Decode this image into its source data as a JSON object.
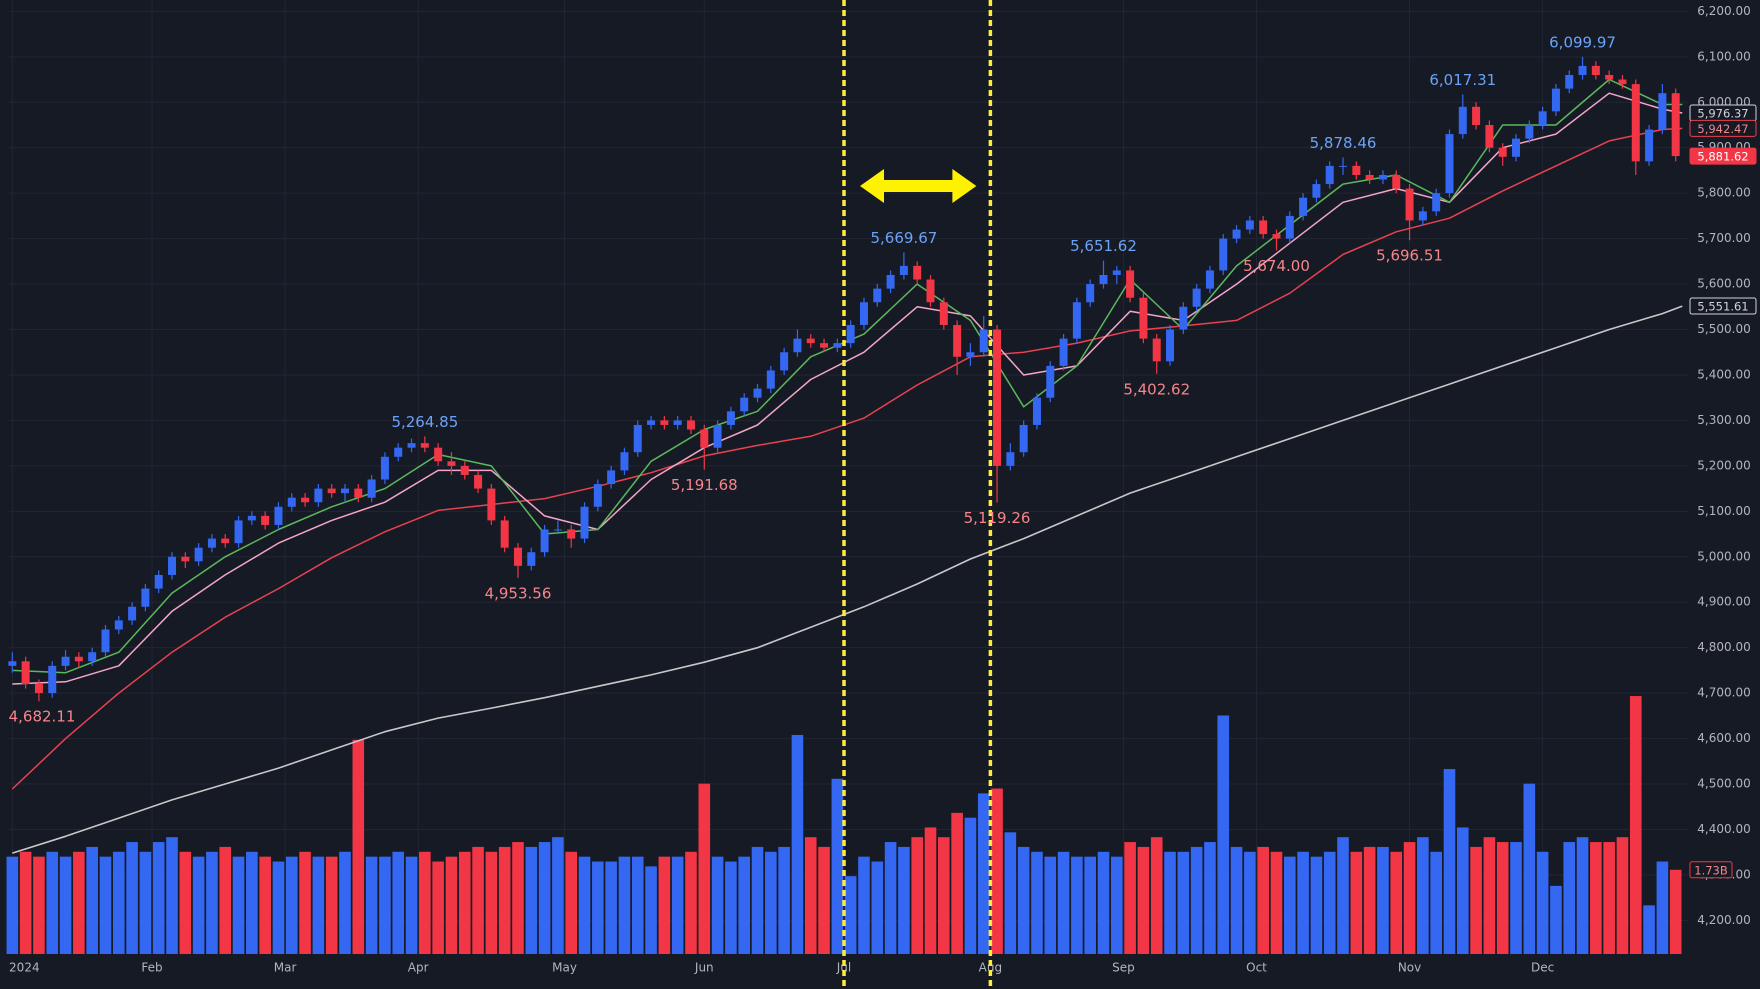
{
  "chart_data": {
    "type": "candlestick",
    "xlim": [
      -0.5,
      252
    ],
    "ylim": [
      4126,
      6225
    ],
    "y2lim": [
      0,
      19.6
    ],
    "grid": true,
    "up_color": "#3468f2",
    "down_color": "#f23645",
    "xticks": [
      {
        "value": 0,
        "label": "2024"
      },
      {
        "value": 21,
        "label": "Feb"
      },
      {
        "value": 41,
        "label": "Mar"
      },
      {
        "value": 61,
        "label": "Apr"
      },
      {
        "value": 83,
        "label": "May"
      },
      {
        "value": 104,
        "label": "Jun"
      },
      {
        "value": 125,
        "label": "Jul"
      },
      {
        "value": 147,
        "label": "Aug"
      },
      {
        "value": 167,
        "label": "Sep"
      },
      {
        "value": 187,
        "label": "Oct"
      },
      {
        "value": 210,
        "label": "Nov"
      },
      {
        "value": 230,
        "label": "Dec"
      }
    ],
    "yticks": [
      {
        "value": 4200,
        "label": "4,200.00"
      },
      {
        "value": 4300,
        "label": "4,300.00"
      },
      {
        "value": 4400,
        "label": "4,400.00"
      },
      {
        "value": 4500,
        "label": "4,500.00"
      },
      {
        "value": 4600,
        "label": "4,600.00"
      },
      {
        "value": 4700,
        "label": "4,700.00"
      },
      {
        "value": 4800,
        "label": "4,800.00"
      },
      {
        "value": 4900,
        "label": "4,900.00"
      },
      {
        "value": 5000,
        "label": "5,000.00"
      },
      {
        "value": 5100,
        "label": "5,100.00"
      },
      {
        "value": 5200,
        "label": "5,200.00"
      },
      {
        "value": 5300,
        "label": "5,300.00"
      },
      {
        "value": 5400,
        "label": "5,400.00"
      },
      {
        "value": 5500,
        "label": "5,500.00"
      },
      {
        "value": 5600,
        "label": "5,600.00"
      },
      {
        "value": 5700,
        "label": "5,700.00"
      },
      {
        "value": 5800,
        "label": "5,800.00"
      },
      {
        "value": 5900,
        "label": "5,900.00"
      },
      {
        "value": 6000,
        "label": "6,000.00"
      },
      {
        "value": 6100,
        "label": "6,100.00"
      },
      {
        "value": 6200,
        "label": "6,200.00"
      }
    ],
    "x": [
      0,
      2,
      4,
      6,
      8,
      10,
      12,
      14,
      16,
      18,
      20,
      22,
      24,
      26,
      28,
      30,
      32,
      34,
      36,
      38,
      40,
      42,
      44,
      46,
      48,
      50,
      52,
      54,
      56,
      58,
      60,
      62,
      64,
      66,
      68,
      70,
      72,
      74,
      76,
      78,
      80,
      82,
      84,
      86,
      88,
      90,
      92,
      94,
      96,
      98,
      100,
      102,
      104,
      106,
      108,
      110,
      112,
      114,
      116,
      118,
      120,
      122,
      124,
      126,
      128,
      130,
      132,
      134,
      136,
      138,
      140,
      142,
      144,
      146,
      148,
      150,
      152,
      154,
      156,
      158,
      160,
      162,
      164,
      166,
      168,
      170,
      172,
      174,
      176,
      178,
      180,
      182,
      184,
      186,
      188,
      190,
      192,
      194,
      196,
      198,
      200,
      202,
      204,
      206,
      208,
      210,
      212,
      214,
      216,
      218,
      220,
      222,
      224,
      226,
      228,
      230,
      232,
      234,
      236,
      238,
      240,
      242,
      244,
      246,
      248,
      250
    ],
    "ohlc": [
      [
        4760,
        4790,
        4745,
        4770
      ],
      [
        4770,
        4780,
        4710,
        4720
      ],
      [
        4720,
        4730,
        4682.11,
        4700
      ],
      [
        4700,
        4770,
        4690,
        4760
      ],
      [
        4760,
        4795,
        4750,
        4780
      ],
      [
        4780,
        4790,
        4755,
        4770
      ],
      [
        4770,
        4800,
        4760,
        4790
      ],
      [
        4790,
        4850,
        4780,
        4840
      ],
      [
        4840,
        4870,
        4830,
        4860
      ],
      [
        4860,
        4900,
        4850,
        4890
      ],
      [
        4890,
        4940,
        4880,
        4930
      ],
      [
        4930,
        4970,
        4920,
        4960
      ],
      [
        4960,
        5010,
        4950,
        5000
      ],
      [
        5000,
        5010,
        4975,
        4990
      ],
      [
        4990,
        5030,
        4980,
        5020
      ],
      [
        5020,
        5050,
        5010,
        5040
      ],
      [
        5040,
        5050,
        5020,
        5030
      ],
      [
        5030,
        5090,
        5020,
        5080
      ],
      [
        5080,
        5100,
        5070,
        5090
      ],
      [
        5090,
        5100,
        5060,
        5070
      ],
      [
        5070,
        5120,
        5060,
        5110
      ],
      [
        5110,
        5140,
        5100,
        5130
      ],
      [
        5130,
        5140,
        5110,
        5120
      ],
      [
        5120,
        5160,
        5110,
        5150
      ],
      [
        5150,
        5160,
        5130,
        5140
      ],
      [
        5140,
        5160,
        5120,
        5150
      ],
      [
        5150,
        5160,
        5120,
        5130
      ],
      [
        5130,
        5180,
        5120,
        5170
      ],
      [
        5170,
        5230,
        5160,
        5220
      ],
      [
        5220,
        5250,
        5210,
        5240
      ],
      [
        5240,
        5260,
        5230,
        5250
      ],
      [
        5250,
        5264.85,
        5230,
        5240
      ],
      [
        5240,
        5250,
        5200,
        5210
      ],
      [
        5210,
        5230,
        5180,
        5200
      ],
      [
        5200,
        5210,
        5170,
        5180
      ],
      [
        5180,
        5190,
        5140,
        5150
      ],
      [
        5150,
        5160,
        5070,
        5080
      ],
      [
        5080,
        5090,
        5010,
        5020
      ],
      [
        5020,
        5030,
        4953.56,
        4980
      ],
      [
        4980,
        5020,
        4970,
        5010
      ],
      [
        5010,
        5070,
        5000,
        5060
      ],
      [
        5060,
        5080,
        5050,
        5060
      ],
      [
        5060,
        5070,
        5020,
        5040
      ],
      [
        5040,
        5120,
        5030,
        5110
      ],
      [
        5110,
        5170,
        5100,
        5160
      ],
      [
        5160,
        5200,
        5150,
        5190
      ],
      [
        5190,
        5240,
        5180,
        5230
      ],
      [
        5230,
        5300,
        5220,
        5290
      ],
      [
        5290,
        5310,
        5280,
        5300
      ],
      [
        5300,
        5310,
        5280,
        5290
      ],
      [
        5290,
        5310,
        5280,
        5300
      ],
      [
        5300,
        5310,
        5270,
        5280
      ],
      [
        5280,
        5290,
        5191.68,
        5240
      ],
      [
        5240,
        5300,
        5230,
        5290
      ],
      [
        5290,
        5330,
        5280,
        5320
      ],
      [
        5320,
        5360,
        5310,
        5350
      ],
      [
        5350,
        5380,
        5340,
        5370
      ],
      [
        5370,
        5420,
        5360,
        5410
      ],
      [
        5410,
        5460,
        5400,
        5450
      ],
      [
        5450,
        5500,
        5440,
        5480
      ],
      [
        5480,
        5490,
        5460,
        5470
      ],
      [
        5470,
        5480,
        5450,
        5460
      ],
      [
        5460,
        5480,
        5450,
        5470
      ],
      [
        5470,
        5520,
        5460,
        5510
      ],
      [
        5510,
        5570,
        5500,
        5560
      ],
      [
        5560,
        5600,
        5550,
        5590
      ],
      [
        5590,
        5630,
        5580,
        5620
      ],
      [
        5620,
        5669.67,
        5610,
        5640
      ],
      [
        5640,
        5650,
        5600,
        5610
      ],
      [
        5610,
        5620,
        5550,
        5560
      ],
      [
        5560,
        5570,
        5500,
        5510
      ],
      [
        5510,
        5520,
        5400,
        5440
      ],
      [
        5440,
        5470,
        5420,
        5450
      ],
      [
        5450,
        5530,
        5440,
        5500
      ],
      [
        5500,
        5510,
        5119.26,
        5200
      ],
      [
        5200,
        5250,
        5190,
        5230
      ],
      [
        5230,
        5300,
        5220,
        5290
      ],
      [
        5290,
        5360,
        5280,
        5350
      ],
      [
        5350,
        5430,
        5340,
        5420
      ],
      [
        5420,
        5490,
        5410,
        5480
      ],
      [
        5480,
        5570,
        5470,
        5560
      ],
      [
        5560,
        5610,
        5550,
        5600
      ],
      [
        5600,
        5651.62,
        5590,
        5620
      ],
      [
        5620,
        5640,
        5600,
        5630
      ],
      [
        5630,
        5640,
        5560,
        5570
      ],
      [
        5570,
        5580,
        5470,
        5480
      ],
      [
        5480,
        5490,
        5402.62,
        5430
      ],
      [
        5430,
        5510,
        5420,
        5500
      ],
      [
        5500,
        5560,
        5490,
        5550
      ],
      [
        5550,
        5600,
        5540,
        5590
      ],
      [
        5590,
        5640,
        5580,
        5630
      ],
      [
        5630,
        5710,
        5620,
        5700
      ],
      [
        5700,
        5730,
        5690,
        5720
      ],
      [
        5720,
        5750,
        5710,
        5740
      ],
      [
        5740,
        5750,
        5700,
        5710
      ],
      [
        5710,
        5720,
        5674,
        5700
      ],
      [
        5700,
        5760,
        5690,
        5750
      ],
      [
        5750,
        5800,
        5740,
        5790
      ],
      [
        5790,
        5830,
        5780,
        5820
      ],
      [
        5820,
        5870,
        5810,
        5860
      ],
      [
        5860,
        5878.46,
        5840,
        5860
      ],
      [
        5860,
        5870,
        5830,
        5840
      ],
      [
        5840,
        5850,
        5820,
        5830
      ],
      [
        5830,
        5850,
        5820,
        5840
      ],
      [
        5840,
        5850,
        5800,
        5810
      ],
      [
        5810,
        5820,
        5696.51,
        5740
      ],
      [
        5740,
        5770,
        5730,
        5760
      ],
      [
        5760,
        5810,
        5750,
        5800
      ],
      [
        5800,
        5940,
        5790,
        5930
      ],
      [
        5930,
        6017.31,
        5920,
        5990
      ],
      [
        5990,
        6000,
        5940,
        5950
      ],
      [
        5950,
        5960,
        5890,
        5900
      ],
      [
        5900,
        5910,
        5860,
        5880
      ],
      [
        5880,
        5930,
        5870,
        5920
      ],
      [
        5920,
        5960,
        5910,
        5950
      ],
      [
        5950,
        5990,
        5940,
        5980
      ],
      [
        5980,
        6040,
        5970,
        6030
      ],
      [
        6030,
        6070,
        6020,
        6060
      ],
      [
        6060,
        6099.97,
        6050,
        6080
      ],
      [
        6080,
        6090,
        6050,
        6060
      ],
      [
        6060,
        6070,
        6040,
        6050
      ],
      [
        6050,
        6060,
        6030,
        6040
      ],
      [
        6040,
        6050,
        5840,
        5870
      ],
      [
        5870,
        5950,
        5860,
        5940
      ],
      [
        5940,
        6040,
        5930,
        6020
      ],
      [
        6020,
        6030,
        5870,
        5881.62
      ]
    ],
    "volume": [
      2.0,
      2.1,
      2.0,
      2.1,
      2.0,
      2.1,
      2.2,
      2.0,
      2.1,
      2.3,
      2.1,
      2.3,
      2.4,
      2.1,
      2.0,
      2.1,
      2.2,
      2.0,
      2.1,
      2.0,
      1.9,
      2.0,
      2.1,
      2.0,
      2.0,
      2.1,
      4.4,
      2.0,
      2.0,
      2.1,
      2.0,
      2.1,
      1.9,
      2.0,
      2.1,
      2.2,
      2.1,
      2.2,
      2.3,
      2.2,
      2.3,
      2.4,
      2.1,
      2.0,
      1.9,
      1.9,
      2.0,
      2.0,
      1.8,
      2.0,
      2.0,
      2.1,
      3.5,
      2.0,
      1.9,
      2.0,
      2.2,
      2.1,
      2.2,
      4.5,
      2.4,
      2.2,
      3.6,
      1.6,
      2.0,
      1.9,
      2.3,
      2.2,
      2.4,
      2.6,
      2.4,
      2.9,
      2.8,
      3.3,
      3.4,
      2.5,
      2.2,
      2.1,
      2.0,
      2.1,
      2.0,
      2.0,
      2.1,
      2.0,
      2.3,
      2.2,
      2.4,
      2.1,
      2.1,
      2.2,
      2.3,
      4.9,
      2.2,
      2.1,
      2.2,
      2.1,
      2.0,
      2.1,
      2.0,
      2.1,
      2.4,
      2.1,
      2.2,
      2.2,
      2.1,
      2.3,
      2.4,
      2.1,
      3.8,
      2.6,
      2.2,
      2.4,
      2.3,
      2.3,
      3.5,
      2.1,
      1.4,
      2.3,
      2.4,
      2.3,
      2.3,
      2.4,
      5.3,
      1.0,
      1.9,
      1.73
    ],
    "volume_label": {
      "value": 1.73,
      "label": "1.73B"
    },
    "line_x": [
      0,
      8,
      16,
      24,
      32,
      40,
      48,
      56,
      64,
      72,
      80,
      88,
      96,
      104,
      112,
      120,
      128,
      136,
      144,
      152,
      160,
      168,
      176,
      184,
      192,
      200,
      208,
      216,
      224,
      232,
      240,
      248,
      251
    ],
    "lines": [
      {
        "color": "#c8c8c8",
        "values": [
          4348,
          4385,
          4425,
          4465,
          4500,
          4535,
          4575,
          4615,
          4645,
          4667,
          4690,
          4715,
          4740,
          4768,
          4800,
          4845,
          4890,
          4940,
          4995,
          5040,
          5090,
          5140,
          5180,
          5220,
          5260,
          5300,
          5340,
          5380,
          5420,
          5460,
          5500,
          5535,
          5551.61
        ]
      },
      {
        "color": "#e8424f",
        "values": [
          4489,
          4600,
          4700,
          4790,
          4867,
          4930,
          4998,
          5055,
          5102,
          5115,
          5128,
          5155,
          5185,
          5222,
          5245,
          5265,
          5305,
          5378,
          5440,
          5450,
          5470,
          5497,
          5508,
          5520,
          5580,
          5665,
          5715,
          5745,
          5805,
          5860,
          5915,
          5940,
          5942.47
        ]
      },
      {
        "color": "#f4a6c6",
        "values": [
          4720,
          4725,
          4760,
          4880,
          4960,
          5030,
          5080,
          5120,
          5190,
          5190,
          5090,
          5060,
          5170,
          5240,
          5290,
          5390,
          5450,
          5550,
          5530,
          5400,
          5420,
          5540,
          5520,
          5600,
          5690,
          5780,
          5810,
          5780,
          5900,
          5930,
          6020,
          5985,
          5976.37
        ]
      },
      {
        "color": "#5cb85c",
        "values": [
          4750,
          4745,
          4790,
          4920,
          5000,
          5060,
          5110,
          5150,
          5225,
          5200,
          5050,
          5060,
          5210,
          5280,
          5320,
          5440,
          5490,
          5600,
          5520,
          5330,
          5420,
          5610,
          5500,
          5640,
          5730,
          5820,
          5840,
          5780,
          5950,
          5950,
          6050,
          5995,
          5995
        ]
      }
    ],
    "annotations": [
      {
        "x": 4,
        "value": 4682.11,
        "label": "4,682.11",
        "color": "#f7858a",
        "position": "below"
      },
      {
        "x": 62,
        "value": 5264.85,
        "label": "5,264.85",
        "color": "#6aa3f8",
        "position": "above"
      },
      {
        "x": 76,
        "value": 4953.56,
        "label": "4,953.56",
        "color": "#f7858a",
        "position": "below"
      },
      {
        "x": 104,
        "value": 5191.68,
        "label": "5,191.68",
        "color": "#f7858a",
        "position": "below"
      },
      {
        "x": 134,
        "value": 5669.67,
        "label": "5,669.67",
        "color": "#6aa3f8",
        "position": "above"
      },
      {
        "x": 148,
        "value": 5119.26,
        "label": "5,119.26",
        "color": "#f7858a",
        "position": "below"
      },
      {
        "x": 164,
        "value": 5651.62,
        "label": "5,651.62",
        "color": "#6aa3f8",
        "position": "above"
      },
      {
        "x": 172,
        "value": 5402.62,
        "label": "5,402.62",
        "color": "#f7858a",
        "position": "below"
      },
      {
        "x": 190,
        "value": 5674,
        "label": "5,674.00",
        "color": "#f7858a",
        "position": "below"
      },
      {
        "x": 200,
        "value": 5878.46,
        "label": "5,878.46",
        "color": "#6aa3f8",
        "position": "above"
      },
      {
        "x": 210,
        "value": 5696.51,
        "label": "5,696.51",
        "color": "#f7858a",
        "position": "below"
      },
      {
        "x": 218,
        "value": 6017.31,
        "label": "6,017.31",
        "color": "#6aa3f8",
        "position": "above"
      },
      {
        "x": 236,
        "value": 6099.97,
        "label": "6,099.97",
        "color": "#6aa3f8",
        "position": "above"
      }
    ],
    "price_tags": [
      {
        "value": 5976.37,
        "label": "5,976.37",
        "fill": "#161a25",
        "stroke": "#d1d4dc",
        "text": "#d1d4dc"
      },
      {
        "value": 5942.47,
        "label": "5,942.47",
        "fill": "#161a25",
        "stroke": "#e8424f",
        "text": "#f7858a"
      },
      {
        "value": 5881.62,
        "label": "5,881.62",
        "fill": "#f23645",
        "stroke": "#f23645",
        "text": "#ffffff"
      },
      {
        "value": 5551.61,
        "label": "5,551.61",
        "fill": "#161a25",
        "stroke": "#d1d4dc",
        "text": "#d1d4dc"
      }
    ]
  }
}
